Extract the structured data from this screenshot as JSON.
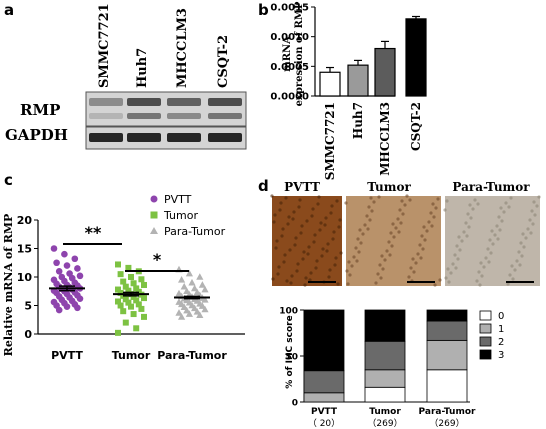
{
  "panel_a": {
    "letter": "a",
    "cell_lines": [
      "SMMC7721",
      "Huh7",
      "MHCCLM3",
      "CSQT-2"
    ],
    "rows": [
      "RMP",
      "GAPDH"
    ],
    "band_intensity": {
      "RMP": [
        0.45,
        0.7,
        0.62,
        0.7
      ],
      "GAPDH": [
        0.85,
        0.85,
        0.85,
        0.85
      ]
    }
  },
  "panel_b": {
    "letter": "b",
    "ylabel_line1": "mRNA",
    "ylabel_line2": "expression of RMP",
    "colors": [
      "#ffffff",
      "#9a9a9a",
      "#5c5c5c",
      "#000000"
    ],
    "chart_data": {
      "type": "bar",
      "categories": [
        "SMMC7721",
        "Huh7",
        "MHCCLM3",
        "CSQT-2"
      ],
      "values": [
        0.0004,
        0.00052,
        0.0008,
        0.0013
      ],
      "errors": [
        8e-05,
        8e-05,
        0.00012,
        4e-05
      ],
      "ylim": [
        0,
        0.0015
      ],
      "yticks": [
        "0.0000",
        "0.0005",
        "0.0010",
        "0.0015"
      ],
      "ytick_values": [
        0,
        0.0005,
        0.001,
        0.0015
      ],
      "grid": false
    }
  },
  "panel_c": {
    "letter": "c",
    "ylabel": "Relative mRNA  of RMP",
    "legend": [
      "PVTT",
      "Tumor",
      "Para-Tumor"
    ],
    "colors": [
      "#8e44ad",
      "#7dc242",
      "#b3b3b3"
    ],
    "sig_labels": [
      "**",
      "*"
    ],
    "chart_data": {
      "type": "scatter",
      "categories": [
        "PVTT",
        "Tumor",
        "Para-Tumor"
      ],
      "means": [
        8.0,
        7.0,
        6.4
      ],
      "sem": [
        0.4,
        0.3,
        0.2
      ],
      "ylim": [
        0,
        20
      ],
      "yticks": [
        "0",
        "5",
        "10",
        "15",
        "20"
      ],
      "ytick_values": [
        0,
        5,
        10,
        15,
        20
      ],
      "points": [
        [
          15.0,
          14.0,
          13.2,
          12.5,
          12.0,
          11.5,
          11.0,
          10.6,
          10.2,
          10.0,
          9.8,
          9.5,
          9.3,
          9.0,
          8.8,
          8.6,
          8.5,
          8.3,
          8.2,
          8.0,
          7.9,
          7.8,
          7.6,
          7.5,
          7.3,
          7.2,
          7.0,
          6.8,
          6.6,
          6.4,
          6.2,
          6.0,
          5.8,
          5.6,
          5.4,
          5.2,
          5.0,
          4.8,
          4.6,
          4.2
        ],
        [
          12.2,
          11.6,
          11.0,
          10.5,
          10.0,
          9.6,
          9.2,
          8.9,
          8.6,
          8.3,
          8.0,
          7.8,
          7.6,
          7.4,
          7.2,
          7.0,
          6.9,
          6.7,
          6.5,
          6.3,
          6.1,
          5.9,
          5.7,
          5.5,
          5.2,
          5.0,
          4.8,
          4.4,
          4.0,
          3.5,
          3.0,
          2.0,
          1.0,
          0.2
        ],
        [
          11.3,
          10.6,
          10.0,
          9.5,
          9.0,
          8.6,
          8.3,
          8.0,
          7.8,
          7.5,
          7.3,
          7.1,
          6.9,
          6.8,
          6.6,
          6.5,
          6.3,
          6.2,
          6.1,
          6.0,
          5.9,
          5.8,
          5.6,
          5.5,
          5.3,
          5.2,
          5.0,
          4.9,
          4.7,
          4.5,
          4.3,
          4.1,
          3.9,
          3.7,
          3.5,
          3.3,
          3.0
        ]
      ]
    }
  },
  "panel_d": {
    "letter": "d",
    "image_titles": [
      "PVTT",
      "Tumor",
      "Para-Tumor"
    ],
    "image_tones": [
      "#8a4a1c",
      "#b9926a",
      "#bfb6aa"
    ],
    "ylabel": "% of IHC score",
    "legend": [
      "0",
      "1",
      "2",
      "3"
    ],
    "colors": [
      "#ffffff",
      "#b0b0b0",
      "#6a6a6a",
      "#000000"
    ],
    "counts": [
      "（ 20）",
      "（269）",
      "（269）"
    ],
    "chart_data": {
      "type": "bar",
      "stacked": true,
      "categories": [
        "PVTT",
        "Tumor",
        "Para-Tumor"
      ],
      "series": [
        {
          "name": "0",
          "values": [
            0,
            16,
            35
          ]
        },
        {
          "name": "1",
          "values": [
            10,
            19,
            32
          ]
        },
        {
          "name": "2",
          "values": [
            24,
            31,
            21
          ]
        },
        {
          "name": "3",
          "values": [
            66,
            34,
            12
          ]
        }
      ],
      "ylim": [
        0,
        100
      ],
      "yticks": [
        "0",
        "50",
        "100"
      ],
      "ytick_values": [
        0,
        50,
        100
      ]
    }
  }
}
